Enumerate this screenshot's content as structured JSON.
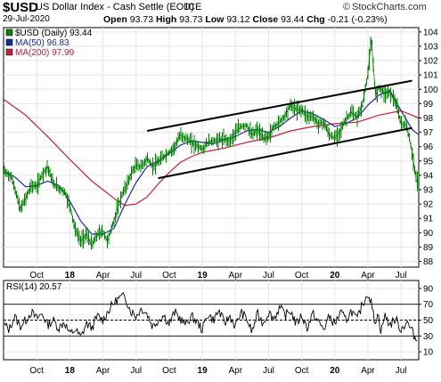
{
  "header": {
    "symbol": "$USD",
    "name": "US Dollar Index - Cash Settle (EOD)",
    "exchange": "ICE",
    "brand": "StockCharts.com",
    "date": "29-Jul-2020",
    "open_label": "Open",
    "open": "93.73",
    "high_label": "High",
    "high": "93.73",
    "low_label": "Low",
    "low": "93.12",
    "close_label": "Close",
    "close": "93.44",
    "chg_label": "Chg",
    "chg": "-0.21 (-0.23%)"
  },
  "colors": {
    "price": "#008000",
    "ma50": "#1a2aa0",
    "ma200": "#c0203a",
    "channel": "#000000",
    "rsi": "#000000"
  },
  "chart_data": [
    {
      "type": "line",
      "panel": "price",
      "x_unit": "months since start of data",
      "x_tick_labels": [
        "Oct",
        "18",
        "Apr",
        "Jul",
        "Oct",
        "19",
        "Apr",
        "Jul",
        "Oct",
        "20",
        "Apr",
        "Jul"
      ],
      "x_ticks": [
        3,
        6,
        9,
        12,
        15,
        18,
        21,
        24,
        27,
        30,
        33,
        36
      ],
      "x_range": [
        0,
        37.6
      ],
      "ylim": [
        87.6,
        104.3
      ],
      "y_ticks": [
        88,
        89,
        90,
        91,
        92,
        93,
        94,
        95,
        96,
        97,
        98,
        99,
        100,
        101,
        102,
        103,
        104
      ],
      "grid": true,
      "legend": {
        "position": "top-left",
        "entries": [
          "$USD (Daily) 93.44",
          "MA(50) 96.83",
          "MA(200) 97.99"
        ]
      },
      "series": [
        {
          "name": "$USD (Daily) 93.44",
          "points": [
            [
              0,
              94.3
            ],
            [
              0.7,
              93.9
            ],
            [
              1.2,
              92.6
            ],
            [
              1.5,
              91.6
            ],
            [
              2,
              92.4
            ],
            [
              2.5,
              93.3
            ],
            [
              3,
              93.2
            ],
            [
              3.5,
              94.1
            ],
            [
              4,
              94.6
            ],
            [
              4.5,
              93.4
            ],
            [
              5,
              93.1
            ],
            [
              5.5,
              92.9
            ],
            [
              6,
              91.9
            ],
            [
              6.5,
              90.2
            ],
            [
              7,
              89.4
            ],
            [
              7.5,
              89.9
            ],
            [
              8,
              89.1
            ],
            [
              8.5,
              89.9
            ],
            [
              9,
              90.1
            ],
            [
              9.4,
              89.4
            ],
            [
              9.9,
              90.6
            ],
            [
              10.3,
              91.6
            ],
            [
              10.7,
              92.6
            ],
            [
              11.2,
              93.4
            ],
            [
              11.6,
              94.2
            ],
            [
              12,
              94.7
            ],
            [
              12.5,
              94.6
            ],
            [
              13,
              95.2
            ],
            [
              13.5,
              94.6
            ],
            [
              14,
              94.9
            ],
            [
              14.5,
              95.3
            ],
            [
              15,
              95.6
            ],
            [
              15.5,
              96.0
            ],
            [
              16,
              96.8
            ],
            [
              16.5,
              96.6
            ],
            [
              17,
              96.3
            ],
            [
              17.5,
              96.1
            ],
            [
              18,
              95.8
            ],
            [
              18.5,
              96.3
            ],
            [
              19,
              96.4
            ],
            [
              19.5,
              96.5
            ],
            [
              20,
              96.5
            ],
            [
              20.5,
              96.4
            ],
            [
              21,
              97.0
            ],
            [
              21.5,
              97.4
            ],
            [
              22,
              97.5
            ],
            [
              22.5,
              96.8
            ],
            [
              23,
              97.2
            ],
            [
              23.5,
              96.6
            ],
            [
              24,
              96.7
            ],
            [
              24.5,
              97.4
            ],
            [
              25,
              97.7
            ],
            [
              25.5,
              98.2
            ],
            [
              26,
              98.9
            ],
            [
              26.5,
              98.6
            ],
            [
              27,
              98.6
            ],
            [
              27.5,
              98.1
            ],
            [
              28,
              98.1
            ],
            [
              28.5,
              97.6
            ],
            [
              29,
              97.7
            ],
            [
              29.5,
              96.8
            ],
            [
              30,
              96.6
            ],
            [
              30.5,
              97.1
            ],
            [
              31,
              97.9
            ],
            [
              31.5,
              98.4
            ],
            [
              32,
              98.0
            ],
            [
              32.5,
              98.9
            ],
            [
              33,
              101.1
            ],
            [
              33.3,
              103.5
            ],
            [
              33.7,
              99.5
            ],
            [
              34,
              100.2
            ],
            [
              34.5,
              99.7
            ],
            [
              35,
              99.8
            ],
            [
              35.5,
              99.1
            ],
            [
              36,
              97.6
            ],
            [
              36.5,
              97.5
            ],
            [
              37,
              95.6
            ],
            [
              37.4,
              93.6
            ],
            [
              37.6,
              93.44
            ]
          ]
        },
        {
          "name": "MA(50) 96.83",
          "points": [
            [
              0,
              94.3
            ],
            [
              1,
              93.9
            ],
            [
              2,
              93.2
            ],
            [
              3,
              93.3
            ],
            [
              4,
              93.6
            ],
            [
              5,
              93.3
            ],
            [
              6,
              92.2
            ],
            [
              7,
              90.8
            ],
            [
              8,
              89.9
            ],
            [
              9,
              89.9
            ],
            [
              10,
              90.3
            ],
            [
              11,
              92.0
            ],
            [
              12,
              93.5
            ],
            [
              13,
              94.6
            ],
            [
              14,
              95.0
            ],
            [
              15,
              95.5
            ],
            [
              16,
              96.1
            ],
            [
              17,
              96.4
            ],
            [
              18,
              96.3
            ],
            [
              19,
              96.2
            ],
            [
              20,
              96.5
            ],
            [
              21,
              96.7
            ],
            [
              22,
              97.1
            ],
            [
              23,
              97.2
            ],
            [
              24,
              97.0
            ],
            [
              25,
              97.4
            ],
            [
              26,
              98.0
            ],
            [
              27,
              98.5
            ],
            [
              28,
              98.3
            ],
            [
              29,
              97.9
            ],
            [
              30,
              97.4
            ],
            [
              31,
              97.6
            ],
            [
              32,
              98.0
            ],
            [
              33,
              98.9
            ],
            [
              34,
              99.6
            ],
            [
              35,
              99.9
            ],
            [
              36,
              98.5
            ],
            [
              37,
              97.2
            ],
            [
              37.6,
              96.83
            ]
          ]
        },
        {
          "name": "MA(200) 97.99",
          "points": [
            [
              0,
              99.3
            ],
            [
              2,
              98.2
            ],
            [
              4,
              96.7
            ],
            [
              6,
              95.1
            ],
            [
              8,
              93.6
            ],
            [
              10,
              92.4
            ],
            [
              11,
              91.9
            ],
            [
              12,
              92.0
            ],
            [
              13,
              92.5
            ],
            [
              14,
              93.4
            ],
            [
              15,
              94.2
            ],
            [
              16,
              94.9
            ],
            [
              17,
              95.3
            ],
            [
              18,
              95.6
            ],
            [
              20,
              95.9
            ],
            [
              22,
              96.3
            ],
            [
              24,
              96.6
            ],
            [
              26,
              97.1
            ],
            [
              28,
              97.4
            ],
            [
              30,
              97.6
            ],
            [
              32,
              97.7
            ],
            [
              34,
              98.2
            ],
            [
              36,
              98.5
            ],
            [
              37.6,
              97.99
            ]
          ]
        }
      ],
      "annotations": [
        {
          "name": "upper channel line",
          "from": [
            13,
            97.1
          ],
          "to": [
            37,
            100.6
          ]
        },
        {
          "name": "lower channel line",
          "from": [
            14,
            93.8
          ],
          "to": [
            37,
            97.3
          ]
        }
      ]
    },
    {
      "type": "line",
      "panel": "rsi",
      "title": "RSI(14) 20.57",
      "x_range": [
        0,
        37.6
      ],
      "ylim": [
        0,
        100
      ],
      "y_ticks": [
        10,
        30,
        50,
        70,
        90
      ],
      "reference_lines": [
        30,
        50,
        70
      ],
      "grid": true,
      "series": [
        {
          "name": "RSI(14) 20.57",
          "points": [
            [
              0,
              45
            ],
            [
              0.5,
              38
            ],
            [
              1,
              55
            ],
            [
              1.5,
              42
            ],
            [
              2,
              50
            ],
            [
              2.5,
              60
            ],
            [
              3,
              52
            ],
            [
              3.5,
              58
            ],
            [
              4,
              44
            ],
            [
              4.5,
              50
            ],
            [
              5,
              40
            ],
            [
              5.5,
              48
            ],
            [
              6,
              32
            ],
            [
              6.5,
              38
            ],
            [
              7,
              28
            ],
            [
              7.5,
              46
            ],
            [
              8,
              40
            ],
            [
              8.5,
              55
            ],
            [
              9,
              50
            ],
            [
              9.5,
              62
            ],
            [
              10,
              72
            ],
            [
              10.5,
              78
            ],
            [
              11,
              80
            ],
            [
              11.5,
              62
            ],
            [
              12,
              55
            ],
            [
              12.5,
              65
            ],
            [
              13,
              58
            ],
            [
              13.5,
              42
            ],
            [
              14,
              50
            ],
            [
              14.5,
              56
            ],
            [
              15,
              45
            ],
            [
              15.5,
              60
            ],
            [
              16,
              52
            ],
            [
              16.5,
              44
            ],
            [
              17,
              55
            ],
            [
              17.5,
              48
            ],
            [
              18,
              38
            ],
            [
              18.5,
              58
            ],
            [
              19,
              50
            ],
            [
              19.5,
              62
            ],
            [
              20,
              46
            ],
            [
              20.5,
              55
            ],
            [
              21,
              42
            ],
            [
              21.5,
              60
            ],
            [
              22,
              52
            ],
            [
              22.5,
              35
            ],
            [
              23,
              58
            ],
            [
              23.5,
              46
            ],
            [
              24,
              60
            ],
            [
              24.5,
              52
            ],
            [
              25,
              66
            ],
            [
              25.5,
              56
            ],
            [
              26,
              62
            ],
            [
              26.5,
              45
            ],
            [
              27,
              56
            ],
            [
              27.5,
              40
            ],
            [
              28,
              58
            ],
            [
              28.5,
              48
            ],
            [
              29,
              38
            ],
            [
              29.5,
              55
            ],
            [
              30,
              45
            ],
            [
              30.5,
              60
            ],
            [
              31,
              50
            ],
            [
              31.5,
              62
            ],
            [
              32,
              50
            ],
            [
              32.5,
              70
            ],
            [
              33,
              84
            ],
            [
              33.3,
              72
            ],
            [
              33.6,
              48
            ],
            [
              33.9,
              58
            ],
            [
              34.2,
              35
            ],
            [
              34.5,
              56
            ],
            [
              35,
              44
            ],
            [
              35.5,
              52
            ],
            [
              36,
              38
            ],
            [
              36.5,
              48
            ],
            [
              37,
              36
            ],
            [
              37.3,
              27
            ],
            [
              37.6,
              20.57
            ]
          ]
        }
      ]
    }
  ]
}
